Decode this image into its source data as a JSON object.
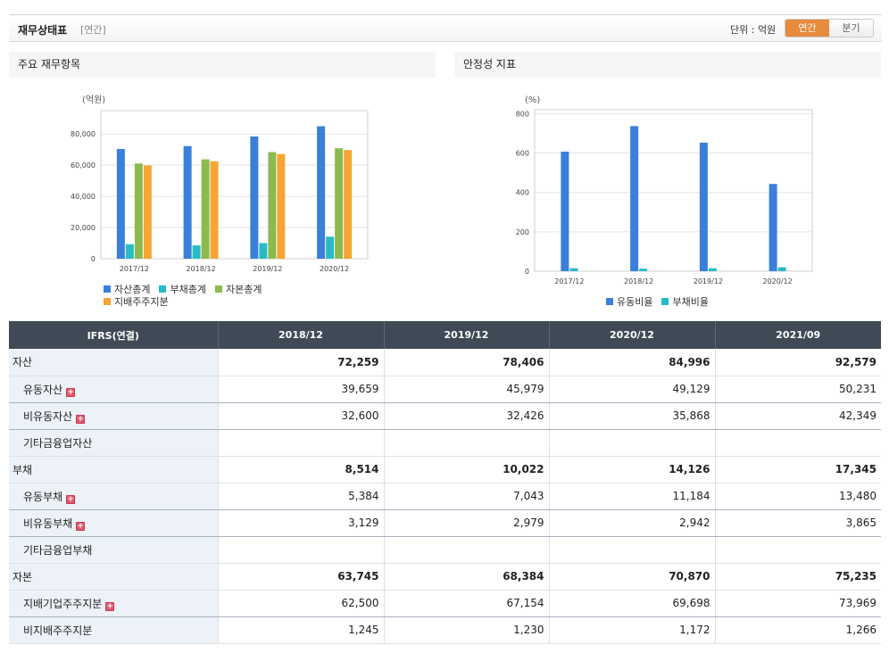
{
  "header": {
    "title": "재무상태표",
    "subtitle": "[연간]",
    "unit_label": "단위 : 억원",
    "toggle": {
      "annual": "연간",
      "quarterly": "분기",
      "active": "annual"
    }
  },
  "panels": {
    "left_title": "주요 재무항목",
    "right_title": "안정성 지표"
  },
  "chart_data": [
    {
      "type": "bar",
      "unit_label": "(억원)",
      "categories": [
        "2017/12",
        "2018/12",
        "2019/12",
        "2020/12"
      ],
      "ylim": [
        0,
        95000
      ],
      "yticks": [
        0,
        20000,
        40000,
        60000,
        80000
      ],
      "ytick_labels": [
        "0",
        "20,000",
        "40,000",
        "60,000",
        "80,000"
      ],
      "grid": true,
      "legend_position": "bottom-left",
      "series": [
        {
          "name": "자산총계",
          "color": "#3a7fd9",
          "values": [
            70400,
            72259,
            78406,
            84996
          ]
        },
        {
          "name": "부채총계",
          "color": "#27bcc4",
          "values": [
            9300,
            8514,
            10022,
            14126
          ]
        },
        {
          "name": "자본총계",
          "color": "#8cba4f",
          "values": [
            61100,
            63745,
            68384,
            70870
          ]
        },
        {
          "name": "지배주주지분",
          "color": "#f5a633",
          "values": [
            59800,
            62500,
            67154,
            69698
          ]
        }
      ]
    },
    {
      "type": "bar",
      "unit_label": "(%)",
      "categories": [
        "2017/12",
        "2018/12",
        "2019/12",
        "2020/12"
      ],
      "ylim": [
        0,
        820
      ],
      "yticks": [
        0,
        200,
        400,
        600,
        800
      ],
      "ytick_labels": [
        "0",
        "200",
        "400",
        "600",
        "800"
      ],
      "grid": true,
      "legend_position": "bottom-center",
      "series": [
        {
          "name": "유동비율",
          "color": "#3a7fd9",
          "values": [
            607,
            737,
            653,
            443
          ]
        },
        {
          "name": "부채비율",
          "color": "#27bcc4",
          "values": [
            15,
            13,
            15,
            20
          ]
        }
      ]
    }
  ],
  "table": {
    "header": [
      "IFRS(연결)",
      "2018/12",
      "2019/12",
      "2020/12",
      "2021/09"
    ],
    "rows": [
      {
        "label": "자산",
        "level": 0,
        "expand": false,
        "values": [
          "72,259",
          "78,406",
          "84,996",
          "92,579"
        ]
      },
      {
        "label": "유동자산",
        "level": 1,
        "expand": true,
        "values": [
          "39,659",
          "45,979",
          "49,129",
          "50,231"
        ]
      },
      {
        "label": "비유동자산",
        "level": 1,
        "expand": true,
        "values": [
          "32,600",
          "32,426",
          "35,868",
          "42,349"
        ]
      },
      {
        "label": "기타금융업자산",
        "level": 1,
        "expand": false,
        "values": [
          "",
          "",
          "",
          ""
        ]
      },
      {
        "label": "부채",
        "level": 0,
        "expand": false,
        "values": [
          "8,514",
          "10,022",
          "14,126",
          "17,345"
        ]
      },
      {
        "label": "유동부채",
        "level": 1,
        "expand": true,
        "values": [
          "5,384",
          "7,043",
          "11,184",
          "13,480"
        ]
      },
      {
        "label": "비유동부채",
        "level": 1,
        "expand": true,
        "values": [
          "3,129",
          "2,979",
          "2,942",
          "3,865"
        ]
      },
      {
        "label": "기타금융업부채",
        "level": 1,
        "expand": false,
        "values": [
          "",
          "",
          "",
          ""
        ]
      },
      {
        "label": "자본",
        "level": 0,
        "expand": false,
        "values": [
          "63,745",
          "68,384",
          "70,870",
          "75,235"
        ]
      },
      {
        "label": "지배기업주주지분",
        "level": 1,
        "expand": true,
        "values": [
          "62,500",
          "67,154",
          "69,698",
          "73,969"
        ]
      },
      {
        "label": "비지배주주지분",
        "level": 1,
        "expand": false,
        "values": [
          "1,245",
          "1,230",
          "1,172",
          "1,266"
        ]
      }
    ]
  }
}
